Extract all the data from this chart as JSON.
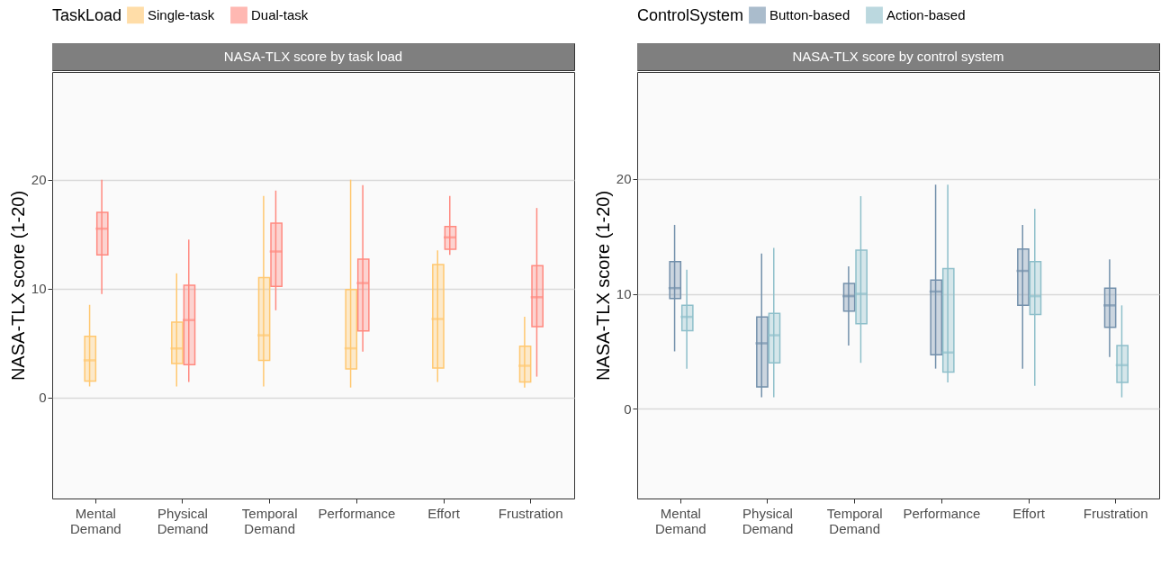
{
  "chart_data": [
    {
      "type": "box",
      "title": "NASA-TLX score by task load",
      "ylabel": "NASA-TLX score (1-20)",
      "legend_title": "TaskLoad",
      "legend": "top",
      "grid": "y",
      "categories": [
        "Mental Demand",
        "Physical Demand",
        "Temporal Demand",
        "Performance",
        "Effort",
        "Frustration"
      ],
      "ylim": [
        -9.3,
        29.9
      ],
      "yticks": [
        0,
        10,
        20
      ],
      "series": [
        {
          "name": "Single-task",
          "color": "#ffc870",
          "boxes": [
            {
              "low": 1.0,
              "q1": 1.5,
              "median": 3.4,
              "q3": 5.6,
              "high": 8.5
            },
            {
              "low": 1.0,
              "q1": 3.1,
              "median": 4.5,
              "q3": 6.9,
              "high": 11.4
            },
            {
              "low": 1.0,
              "q1": 3.4,
              "median": 5.7,
              "q3": 11.0,
              "high": 18.5
            },
            {
              "low": 0.9,
              "q1": 2.6,
              "median": 4.5,
              "q3": 9.9,
              "high": 20.0
            },
            {
              "low": 1.4,
              "q1": 2.7,
              "median": 7.2,
              "q3": 12.2,
              "high": 13.5
            },
            {
              "low": 0.9,
              "q1": 1.4,
              "median": 2.9,
              "q3": 4.7,
              "high": 7.4
            }
          ]
        },
        {
          "name": "Dual-task",
          "color": "#ff8a80",
          "boxes": [
            {
              "low": 9.5,
              "q1": 13.1,
              "median": 15.5,
              "q3": 17.0,
              "high": 20.0
            },
            {
              "low": 1.4,
              "q1": 3.0,
              "median": 7.1,
              "q3": 10.3,
              "high": 14.5
            },
            {
              "low": 8.0,
              "q1": 10.2,
              "median": 13.4,
              "q3": 16.0,
              "high": 19.0
            },
            {
              "low": 4.2,
              "q1": 6.1,
              "median": 10.5,
              "q3": 12.7,
              "high": 19.5
            },
            {
              "low": 13.1,
              "q1": 13.6,
              "median": 14.7,
              "q3": 15.7,
              "high": 18.5
            },
            {
              "low": 1.9,
              "q1": 6.5,
              "median": 9.2,
              "q3": 12.1,
              "high": 17.4
            }
          ]
        }
      ]
    },
    {
      "type": "box",
      "title": "NASA-TLX score by control system",
      "ylabel": "NASA-TLX score (1-20)",
      "legend_title": "ControlSystem",
      "legend": "top",
      "grid": "y",
      "categories": [
        "Mental Demand",
        "Physical Demand",
        "Temporal Demand",
        "Performance",
        "Effort",
        "Frustration"
      ],
      "ylim": [
        -7.8,
        29.3
      ],
      "yticks": [
        0,
        10,
        20
      ],
      "series": [
        {
          "name": "Button-based",
          "color": "#7390ab",
          "boxes": [
            {
              "low": 5.0,
              "q1": 9.6,
              "median": 10.5,
              "q3": 12.8,
              "high": 16.0
            },
            {
              "low": 1.0,
              "q1": 1.9,
              "median": 5.7,
              "q3": 8.0,
              "high": 13.5
            },
            {
              "low": 5.5,
              "q1": 8.5,
              "median": 9.8,
              "q3": 10.9,
              "high": 12.4
            },
            {
              "low": 3.5,
              "q1": 4.7,
              "median": 10.2,
              "q3": 11.2,
              "high": 19.5
            },
            {
              "low": 3.5,
              "q1": 9.0,
              "median": 12.0,
              "q3": 13.9,
              "high": 16.0
            },
            {
              "low": 4.5,
              "q1": 7.1,
              "median": 9.0,
              "q3": 10.5,
              "high": 13.0
            }
          ]
        },
        {
          "name": "Action-based",
          "color": "#8ebfca",
          "boxes": [
            {
              "low": 3.5,
              "q1": 6.8,
              "median": 8.0,
              "q3": 9.0,
              "high": 12.1
            },
            {
              "low": 1.0,
              "q1": 4.0,
              "median": 6.4,
              "q3": 8.3,
              "high": 14.0
            },
            {
              "low": 4.0,
              "q1": 7.4,
              "median": 10.0,
              "q3": 13.8,
              "high": 18.5
            },
            {
              "low": 2.3,
              "q1": 3.2,
              "median": 4.9,
              "q3": 12.2,
              "high": 19.5
            },
            {
              "low": 2.0,
              "q1": 8.2,
              "median": 9.8,
              "q3": 12.8,
              "high": 17.4
            },
            {
              "low": 1.0,
              "q1": 2.3,
              "median": 3.8,
              "q3": 5.5,
              "high": 9.0
            }
          ]
        }
      ]
    }
  ]
}
